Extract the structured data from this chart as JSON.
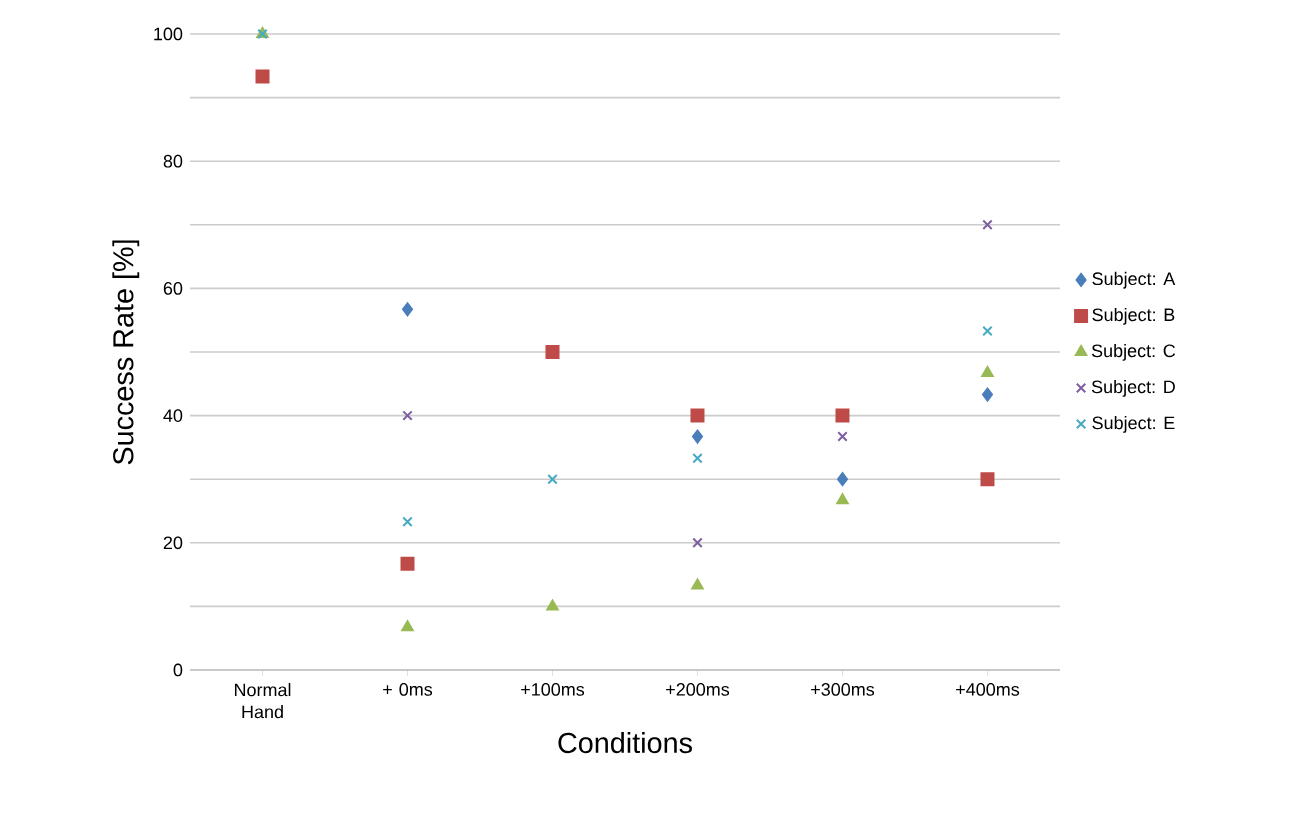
{
  "chart_data": {
    "type": "scatter",
    "xlabel": "Conditions",
    "ylabel": "Success Rate [%]",
    "categories": [
      "Normal Hand",
      "+ 0ms",
      "+100ms",
      "+200ms",
      "+300ms",
      "+400ms"
    ],
    "ylim": [
      0,
      100
    ],
    "yticks": [
      0,
      {
        "value": 10,
        "label": null
      },
      20,
      {
        "value": 30,
        "label": null
      },
      40,
      {
        "value": 50,
        "label": null
      },
      60,
      {
        "value": 70,
        "label": null
      },
      80,
      {
        "value": 90,
        "label": null
      },
      100
    ],
    "grid": "y",
    "legend": "right",
    "series": [
      {
        "name": "Subject: A",
        "color": "#4a7ebb",
        "marker": "diamond",
        "values": [
          null,
          56.7,
          null,
          36.7,
          30,
          43.3
        ]
      },
      {
        "name": "Subject: B",
        "color": "#be4b48",
        "marker": "square",
        "values": [
          93.3,
          16.7,
          50,
          40,
          40,
          30
        ]
      },
      {
        "name": "Subject: C",
        "color": "#98b954",
        "marker": "triangle",
        "values": [
          100,
          6.7,
          10,
          13.3,
          26.7,
          46.7
        ]
      },
      {
        "name": "Subject: D",
        "color": "#7d60a0",
        "marker": "cross",
        "values": [
          null,
          40,
          null,
          20,
          36.7,
          70
        ]
      },
      {
        "name": "Subject: E",
        "color": "#46aac5",
        "marker": "cross",
        "values": [
          100,
          23.3,
          30,
          33.3,
          null,
          53.3
        ]
      }
    ]
  }
}
